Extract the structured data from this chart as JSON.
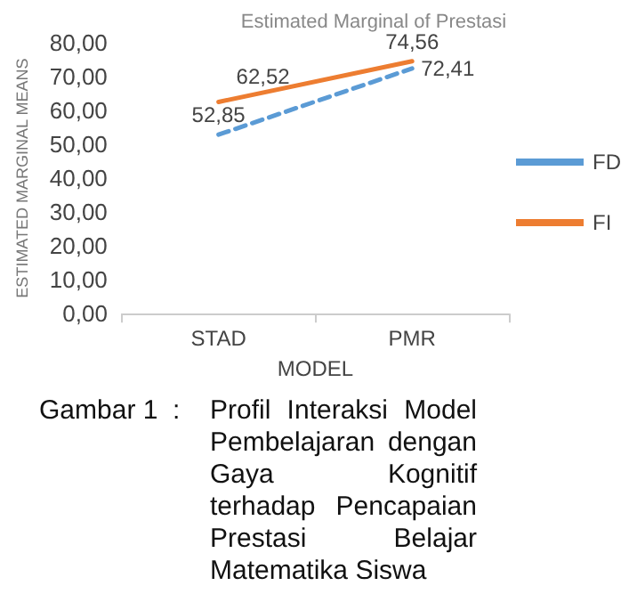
{
  "chart_data": {
    "type": "line",
    "title": "Estimated Marginal of Prestasi",
    "xlabel": "MODEL",
    "ylabel": "ESTIMATED MARGINAL MEANS",
    "categories": [
      "STAD",
      "PMR"
    ],
    "series": [
      {
        "name": "FD",
        "color": "#5b9bd5",
        "line_style": "dashed",
        "values": [
          52.85,
          72.41
        ],
        "value_labels": [
          "52,85",
          "72,41"
        ]
      },
      {
        "name": "FI",
        "color": "#ed7d31",
        "line_style": "solid",
        "values": [
          62.52,
          74.56
        ],
        "value_labels": [
          "62,52",
          "74,56"
        ]
      }
    ],
    "ylim": [
      0,
      80
    ],
    "yticks": [
      {
        "value": 0,
        "label": "0,00"
      },
      {
        "value": 10,
        "label": "10,00"
      },
      {
        "value": 20,
        "label": "20,00"
      },
      {
        "value": 30,
        "label": "30,00"
      },
      {
        "value": 40,
        "label": "40,00"
      },
      {
        "value": 50,
        "label": "50,00"
      },
      {
        "value": 60,
        "label": "60,00"
      },
      {
        "value": 70,
        "label": "70,00"
      },
      {
        "value": 80,
        "label": "80,00"
      }
    ],
    "grid": false,
    "legend": "right",
    "marker": "none",
    "annotations": [
      "Gambar 1 : Profil Interaksi Model Pembelajaran dengan Gaya Kognitif terhadap Pencapaian Prestasi Belajar Matematika Siswa"
    ]
  }
}
